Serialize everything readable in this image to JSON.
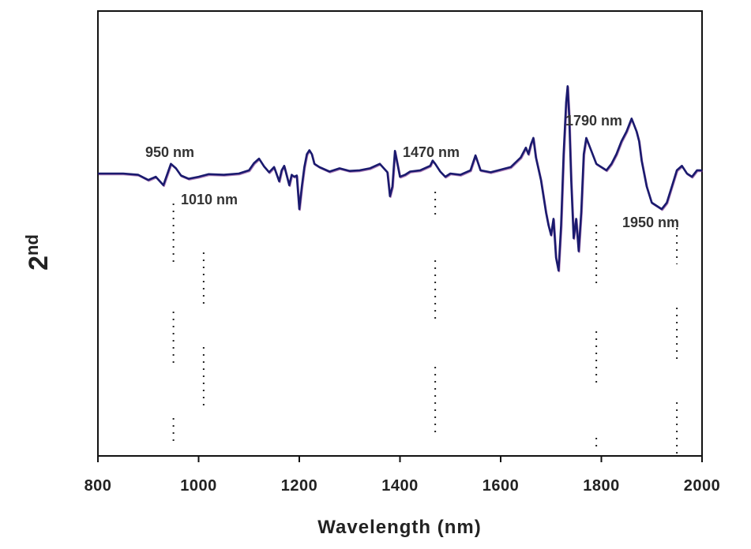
{
  "chart_data": {
    "type": "line",
    "xlabel": "Wavelength (nm)",
    "ylabel": "2",
    "ylabel_superscript": "nd",
    "xlim": [
      800,
      2000
    ],
    "xticks": [
      800,
      1000,
      1200,
      1400,
      1600,
      1800,
      2000
    ],
    "yticks_shown": false,
    "grid": false,
    "legend": "none",
    "colors": {
      "series_main": "#1a1a6e",
      "series_overlay": "#7a2a8a"
    },
    "annotations": [
      {
        "label": "950 nm",
        "x": 950
      },
      {
        "label": "1010 nm",
        "x": 1010
      },
      {
        "label": "1470 nm",
        "x": 1470
      },
      {
        "label": "1790 nm",
        "x": 1790
      },
      {
        "label": "1950 nm",
        "x": 1950
      }
    ],
    "series": [
      {
        "x": [
          800,
          850,
          880,
          900,
          915,
          930,
          945,
          955,
          965,
          980,
          1000,
          1020,
          1050,
          1080,
          1100,
          1110,
          1120,
          1130,
          1140,
          1150,
          1160,
          1165,
          1170,
          1175,
          1180,
          1185,
          1190,
          1195,
          1200,
          1205,
          1210,
          1215,
          1220,
          1225,
          1230,
          1240,
          1260,
          1280,
          1300,
          1320,
          1340,
          1360,
          1375,
          1380,
          1385,
          1390,
          1395,
          1400,
          1410,
          1420,
          1440,
          1460,
          1465,
          1470,
          1480,
          1490,
          1500,
          1520,
          1540,
          1550,
          1560,
          1580,
          1600,
          1620,
          1640,
          1650,
          1655,
          1660,
          1665,
          1670,
          1680,
          1690,
          1695,
          1700,
          1705,
          1710,
          1715,
          1720,
          1725,
          1730,
          1733,
          1736,
          1740,
          1745,
          1750,
          1755,
          1760,
          1765,
          1770,
          1780,
          1790,
          1800,
          1810,
          1820,
          1830,
          1840,
          1850,
          1860,
          1870,
          1875,
          1880,
          1890,
          1900,
          1910,
          1920,
          1930,
          1940,
          1950,
          1960,
          1970,
          1980,
          1990,
          2000
        ],
        "y": [
          0,
          0,
          -0.2,
          -1.0,
          -0.5,
          -1.8,
          1.5,
          0.8,
          -0.3,
          -0.8,
          -0.5,
          -0.1,
          -0.2,
          0,
          0.5,
          1.6,
          2.3,
          1.1,
          0.2,
          1.0,
          -1.2,
          0.5,
          1.2,
          -0.3,
          -1.8,
          -0.2,
          -0.5,
          -0.3,
          -5.5,
          -2.0,
          1.0,
          3.0,
          3.6,
          3.0,
          1.5,
          1.0,
          0.3,
          0.8,
          0.4,
          0.5,
          0.8,
          1.5,
          0.2,
          -3.5,
          -2.0,
          3.5,
          1.5,
          -0.5,
          -0.2,
          0.3,
          0.5,
          1.2,
          2.0,
          1.5,
          0.3,
          -0.5,
          0,
          -0.2,
          0.5,
          2.8,
          0.5,
          0.2,
          0.6,
          1.0,
          2.5,
          4.0,
          3.0,
          4.5,
          5.5,
          2.5,
          -1.0,
          -6.0,
          -8.0,
          -9.5,
          -7.0,
          -13.0,
          -15.0,
          -8.0,
          3.0,
          11.0,
          13.5,
          9.0,
          -1.0,
          -10.0,
          -7.0,
          -12.0,
          -6.0,
          3.0,
          5.5,
          3.5,
          1.5,
          1.0,
          0.5,
          1.5,
          3.0,
          5.0,
          6.5,
          8.5,
          6.5,
          5.0,
          2.0,
          -2.0,
          -4.5,
          -5.0,
          -5.5,
          -4.5,
          -2.0,
          0.5,
          1.2,
          0,
          -0.5,
          0.5,
          0.5
        ]
      }
    ]
  }
}
